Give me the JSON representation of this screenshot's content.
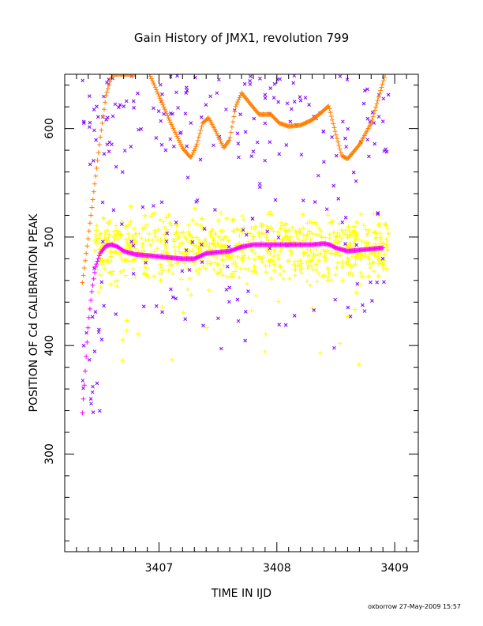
{
  "chart_data": {
    "type": "scatter",
    "title": "Gain History of JMX1, revolution 799",
    "xlabel": "TIME IN IJD",
    "ylabel": "POSITION OF Cd CALIBRATION PEAK",
    "xlim": [
      3406.2,
      3409.2
    ],
    "ylim": [
      210,
      650
    ],
    "xticks": [
      3407,
      3408,
      3409
    ],
    "yticks": [
      300,
      400,
      500,
      600
    ],
    "grid": false,
    "footer": "oxborrow 27-May-2009 15:57",
    "series": [
      {
        "kind": "line",
        "color": "#ff7f00",
        "marker": "+",
        "points": [
          [
            3406.35,
            458
          ],
          [
            3406.4,
            500
          ],
          [
            3406.45,
            545
          ],
          [
            3406.5,
            590
          ],
          [
            3406.55,
            630
          ],
          [
            3406.6,
            650
          ],
          [
            3406.75,
            650
          ],
          [
            3406.8,
            650
          ],
          [
            3406.9,
            655
          ],
          [
            3407.0,
            630
          ],
          [
            3407.1,
            605
          ],
          [
            3407.2,
            582
          ],
          [
            3407.27,
            573
          ],
          [
            3407.32,
            585
          ],
          [
            3407.37,
            605
          ],
          [
            3407.42,
            610
          ],
          [
            3407.48,
            598
          ],
          [
            3407.55,
            582
          ],
          [
            3407.6,
            590
          ],
          [
            3407.65,
            620
          ],
          [
            3407.7,
            633
          ],
          [
            3407.78,
            622
          ],
          [
            3407.85,
            613
          ],
          [
            3407.95,
            613
          ],
          [
            3408.02,
            605
          ],
          [
            3408.1,
            602
          ],
          [
            3408.2,
            603
          ],
          [
            3408.3,
            608
          ],
          [
            3408.38,
            615
          ],
          [
            3408.44,
            621
          ],
          [
            3408.5,
            595
          ],
          [
            3408.55,
            575
          ],
          [
            3408.6,
            572
          ],
          [
            3408.7,
            585
          ],
          [
            3408.8,
            605
          ],
          [
            3408.88,
            635
          ],
          [
            3408.92,
            650
          ]
        ]
      },
      {
        "kind": "line",
        "color": "#ff00ff",
        "marker": "+",
        "points": [
          [
            3406.35,
            338
          ],
          [
            3406.37,
            370
          ],
          [
            3406.4,
            420
          ],
          [
            3406.43,
            450
          ],
          [
            3406.46,
            472
          ],
          [
            3406.5,
            485
          ],
          [
            3406.55,
            492
          ],
          [
            3406.6,
            493
          ],
          [
            3406.65,
            491
          ],
          [
            3406.7,
            487
          ],
          [
            3406.8,
            484
          ],
          [
            3406.9,
            483
          ],
          [
            3407.0,
            482
          ],
          [
            3407.1,
            481
          ],
          [
            3407.2,
            480
          ],
          [
            3407.3,
            480
          ],
          [
            3407.4,
            485
          ],
          [
            3407.5,
            486
          ],
          [
            3407.6,
            487
          ],
          [
            3407.7,
            491
          ],
          [
            3407.8,
            493
          ],
          [
            3407.9,
            493
          ],
          [
            3408.0,
            493
          ],
          [
            3408.1,
            493
          ],
          [
            3408.2,
            493
          ],
          [
            3408.3,
            493
          ],
          [
            3408.4,
            494
          ],
          [
            3408.45,
            493
          ],
          [
            3408.5,
            490
          ],
          [
            3408.6,
            487
          ],
          [
            3408.7,
            488
          ],
          [
            3408.8,
            489
          ],
          [
            3408.9,
            490
          ]
        ]
      },
      {
        "kind": "scatter",
        "color": "#ffff00",
        "marker": "+",
        "x_range": [
          3406.45,
          3408.95
        ],
        "center": 490,
        "spread": 15,
        "outlier_range": [
          380,
          525
        ],
        "count": 850
      },
      {
        "kind": "scatter",
        "color": "#7f00ff",
        "marker": "x",
        "x_range": [
          3406.35,
          3408.95
        ],
        "bands": [
          [
            570,
            650
          ],
          [
            500,
            570
          ],
          [
            395,
            500
          ],
          [
            335,
            430
          ]
        ],
        "count": 260
      }
    ]
  }
}
